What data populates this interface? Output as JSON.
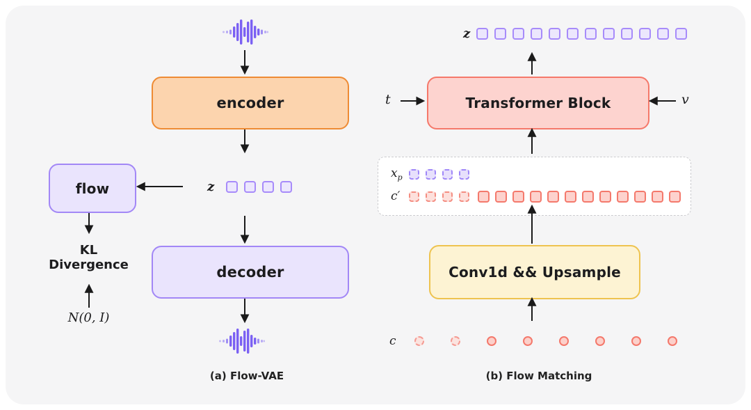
{
  "colors": {
    "panel_bg": "#f5f5f6",
    "encoder_fill": "#fcd4ae",
    "encoder_border": "#ee8b34",
    "purple_fill": "#eae4fd",
    "purple_border": "#a287f6",
    "pink_fill": "#fdd3cf",
    "pink_border": "#f5786a",
    "yellow_fill": "#fdf3d3",
    "yellow_border": "#eec34f",
    "token_purple_border": "#a78bfa",
    "token_red_border": "#f4796c",
    "waveform_purple": "#7b61f3",
    "arrow": "#1a1a1a"
  },
  "panel_a": {
    "caption": "(a) Flow-VAE",
    "encoder": "encoder",
    "decoder": "decoder",
    "flow": "flow",
    "kl_line1": "KL",
    "kl_line2": "Divergence",
    "normal_dist": "N(0, I)",
    "z_label": "z",
    "z_token_count": 4
  },
  "panel_b": {
    "caption": "(b) Flow Matching",
    "transformer": "Transformer Block",
    "conv": "Conv1d && Upsample",
    "z_label": "z",
    "z_token_count": 12,
    "t_label": "t",
    "v_label": "v",
    "xp_base": "x",
    "xp_sub": "p",
    "xp_token_count": 4,
    "cprime_label": "c′",
    "cprime_dashed_count": 4,
    "cprime_solid_count": 12,
    "c_label": "c",
    "c_dashed_count": 2,
    "c_solid_count": 6
  }
}
